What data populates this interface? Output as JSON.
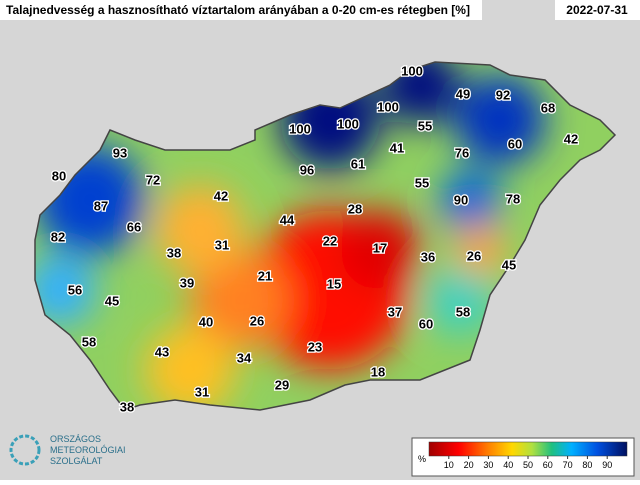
{
  "title": "Talajnedvesség a hasznosítható víztartalom arányában a 0-20 cm-es rétegben [%]",
  "date": "2022-07-31",
  "values": [
    100,
    49,
    92,
    68,
    100,
    100,
    100,
    55,
    42,
    60,
    93,
    80,
    96,
    61,
    41,
    76,
    72,
    55,
    42,
    87,
    90,
    78,
    28,
    66,
    44,
    82,
    22,
    17,
    38,
    31,
    36,
    26,
    45,
    21,
    15,
    56,
    39,
    45,
    37,
    58,
    40,
    26,
    60,
    58,
    43,
    23,
    34,
    18,
    29,
    31,
    38
  ],
  "colorbar": {
    "unit": "%",
    "range": [
      0,
      100
    ],
    "ticks": [
      10,
      20,
      30,
      40,
      50,
      60,
      70,
      80,
      90
    ]
  },
  "logo": [
    "ORSZÁGOS",
    "METEOROLÓGIAI",
    "SZOLGÁLAT"
  ]
}
